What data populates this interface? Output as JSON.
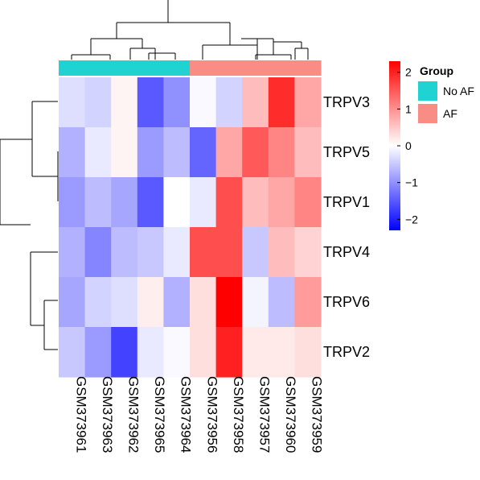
{
  "chart_data": {
    "type": "heatmap",
    "rows": [
      "TRPV3",
      "TRPV5",
      "TRPV1",
      "TRPV4",
      "TRPV6",
      "TRPV2"
    ],
    "columns": [
      "GSM373961",
      "GSM373963",
      "GSM373962",
      "GSM373965",
      "GSM373964",
      "GSM373956",
      "GSM373958",
      "GSM373957",
      "GSM373960",
      "GSM373959"
    ],
    "column_groups": [
      "No AF",
      "No AF",
      "No AF",
      "No AF",
      "No AF",
      "AF",
      "AF",
      "AF",
      "AF",
      "AF"
    ],
    "values": [
      [
        -0.3,
        -0.4,
        0.1,
        -1.5,
        -1.0,
        -0.05,
        -0.4,
        0.6,
        1.9,
        0.8
      ],
      [
        -0.7,
        -0.2,
        0.1,
        -0.9,
        -0.6,
        -1.4,
        0.8,
        1.5,
        1.1,
        0.6
      ],
      [
        -0.9,
        -0.6,
        -0.8,
        -1.5,
        0.0,
        -0.2,
        1.6,
        0.6,
        0.8,
        1.1
      ],
      [
        -0.7,
        -1.1,
        -0.6,
        -0.5,
        -0.2,
        1.6,
        1.6,
        -0.5,
        0.6,
        0.4
      ],
      [
        -0.8,
        -0.4,
        -0.3,
        0.15,
        -0.7,
        0.3,
        2.3,
        -0.1,
        -0.6,
        0.9
      ],
      [
        -0.5,
        -0.9,
        -1.7,
        -0.2,
        -0.05,
        0.3,
        2.0,
        0.2,
        0.2,
        0.3
      ]
    ],
    "scale": {
      "min": -2.3,
      "max": 2.3,
      "low_color": "#0000ff",
      "mid_color": "#ffffff",
      "high_color": "#ff0000"
    },
    "colorbar_ticks": [
      "2",
      "1",
      "0",
      "−1",
      "−2"
    ],
    "colorbar_tick_values": [
      2,
      1,
      0,
      -1,
      -2
    ],
    "legend": {
      "title": "Group",
      "entries": [
        {
          "name": "No AF",
          "color": "#20d3d3"
        },
        {
          "name": "AF",
          "color": "#fa8c86"
        }
      ]
    },
    "row_dendrogram": true,
    "column_dendrogram": true
  }
}
